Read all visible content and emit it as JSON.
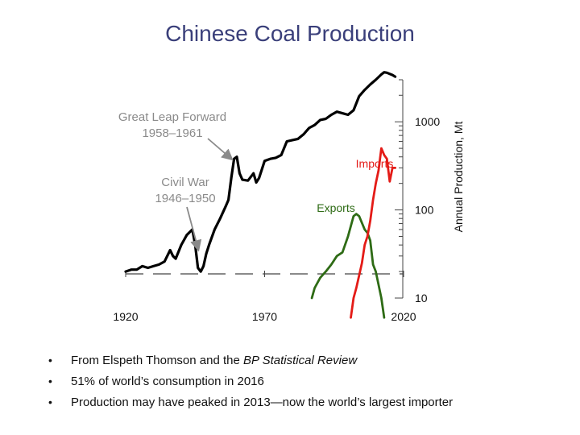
{
  "slide": {
    "title": "Chinese Coal Production",
    "bullets": [
      {
        "prefix": "From Elspeth Thomson and the ",
        "emph": "BP Statistical Review",
        "suffix": ""
      },
      {
        "prefix": "51% of world’s consumption in 2016",
        "emph": "",
        "suffix": ""
      },
      {
        "prefix": "Production may have peaked in 2013—now the world’s largest importer",
        "emph": "",
        "suffix": ""
      }
    ],
    "bullet_glyph": "•"
  },
  "chart_data": {
    "type": "line",
    "title": "",
    "xlabel": "",
    "ylabel": "Annual Production, Mt",
    "xlim": [
      1920,
      2020
    ],
    "ylim": [
      10,
      3000
    ],
    "yscale": "log",
    "x_ticks": [
      1920,
      1970,
      2020
    ],
    "y_tick_labels": [
      {
        "value": 10,
        "label": "10"
      },
      {
        "value": 100,
        "label": "100"
      },
      {
        "value": 1000,
        "label": "1000"
      }
    ],
    "series": [
      {
        "name": "Production",
        "color": "#000000",
        "x": [
          1920,
          1922,
          1924,
          1926,
          1928,
          1930,
          1932,
          1934,
          1936,
          1937,
          1938,
          1940,
          1942,
          1944,
          1945,
          1946,
          1947,
          1948,
          1949,
          1950,
          1952,
          1954,
          1956,
          1957,
          1958,
          1959,
          1960,
          1961,
          1962,
          1964,
          1966,
          1967,
          1968,
          1970,
          1972,
          1974,
          1976,
          1978,
          1980,
          1982,
          1984,
          1986,
          1988,
          1990,
          1992,
          1994,
          1996,
          1998,
          2000,
          2002,
          2004,
          2006,
          2008,
          2010,
          2012,
          2013,
          2014,
          2016,
          2017
        ],
        "values": [
          20,
          21,
          21,
          23,
          22,
          23,
          24,
          26,
          35,
          30,
          28,
          40,
          52,
          60,
          40,
          22,
          20,
          23,
          32,
          40,
          60,
          80,
          110,
          130,
          230,
          380,
          400,
          260,
          220,
          215,
          260,
          205,
          230,
          360,
          380,
          390,
          420,
          600,
          620,
          640,
          720,
          850,
          920,
          1050,
          1080,
          1200,
          1300,
          1250,
          1200,
          1350,
          1950,
          2300,
          2650,
          3000,
          3450,
          3650,
          3600,
          3400,
          3250
        ]
      },
      {
        "name": "Exports",
        "label": "Exports",
        "color": "#2e6b15",
        "x": [
          1987,
          1988,
          1990,
          1992,
          1994,
          1996,
          1998,
          2000,
          2002,
          2003,
          2004,
          2006,
          2007,
          2008,
          2009,
          2010,
          2012,
          2013
        ],
        "values": [
          10,
          13,
          17,
          20,
          24,
          30,
          33,
          50,
          85,
          90,
          85,
          60,
          55,
          45,
          24,
          20,
          10,
          6
        ]
      },
      {
        "name": "Imports",
        "label": "Imports",
        "color": "#e41b17",
        "x": [
          2001,
          2002,
          2003,
          2004,
          2005,
          2006,
          2007,
          2008,
          2009,
          2010,
          2011,
          2012,
          2013,
          2014,
          2015,
          2016,
          2017
        ],
        "values": [
          6,
          10,
          13,
          18,
          25,
          40,
          50,
          75,
          130,
          200,
          280,
          500,
          420,
          380,
          210,
          300,
          300
        ]
      }
    ],
    "annotations": [
      {
        "text": "Great Leap Forward\n1958–1961",
        "points_to": 1960
      },
      {
        "text": "Civil War\n1946–1950",
        "points_to": 1947
      }
    ]
  }
}
